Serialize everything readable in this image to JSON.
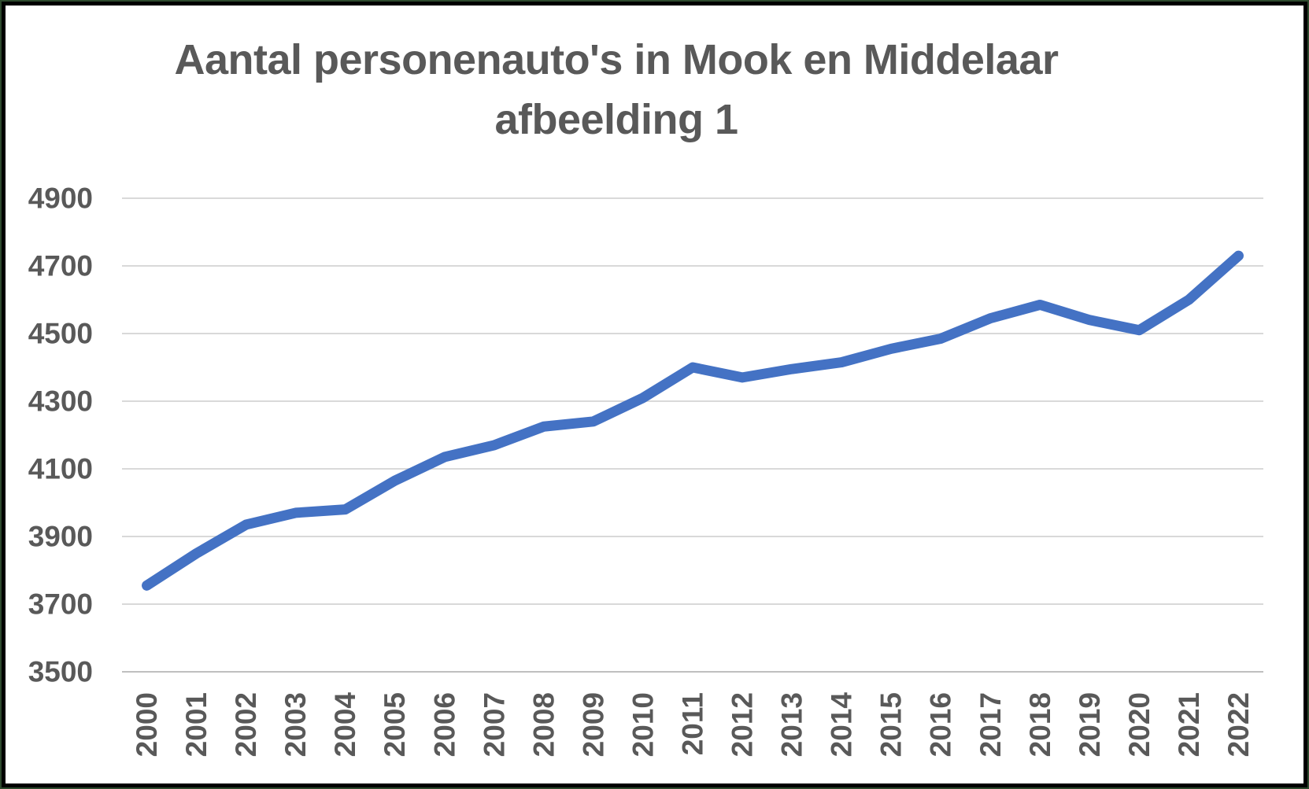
{
  "chart_data": {
    "type": "line",
    "title_line1": "Aantal personenauto's in Mook en Middelaar",
    "title_line2": "afbeelding 1",
    "categories": [
      "2000",
      "2001",
      "2002",
      "2003",
      "2004",
      "2005",
      "2006",
      "2007",
      "2008",
      "2009",
      "2010",
      "2011",
      "2012",
      "2013",
      "2014",
      "2015",
      "2016",
      "2017",
      "2018",
      "2019",
      "2020",
      "2021",
      "2022"
    ],
    "values": [
      3755,
      3850,
      3935,
      3970,
      3980,
      4065,
      4135,
      4170,
      4225,
      4240,
      4310,
      4400,
      4370,
      4395,
      4415,
      4455,
      4485,
      4545,
      4585,
      4540,
      4510,
      4600,
      4730
    ],
    "y_ticks": [
      3500,
      3700,
      3900,
      4100,
      4300,
      4500,
      4700,
      4900
    ],
    "ylim": [
      3500,
      4900
    ],
    "xlabel": "",
    "ylabel": "",
    "grid": true,
    "legend": "none",
    "colors": {
      "line": "#4472C4",
      "grid": "#D9D9D9",
      "axis_line": "#BFBFBF",
      "text": "#595959",
      "frame_outer_green": "#2E4A2E",
      "frame_inner_black": "#000000",
      "background": "#FFFFFF"
    }
  }
}
